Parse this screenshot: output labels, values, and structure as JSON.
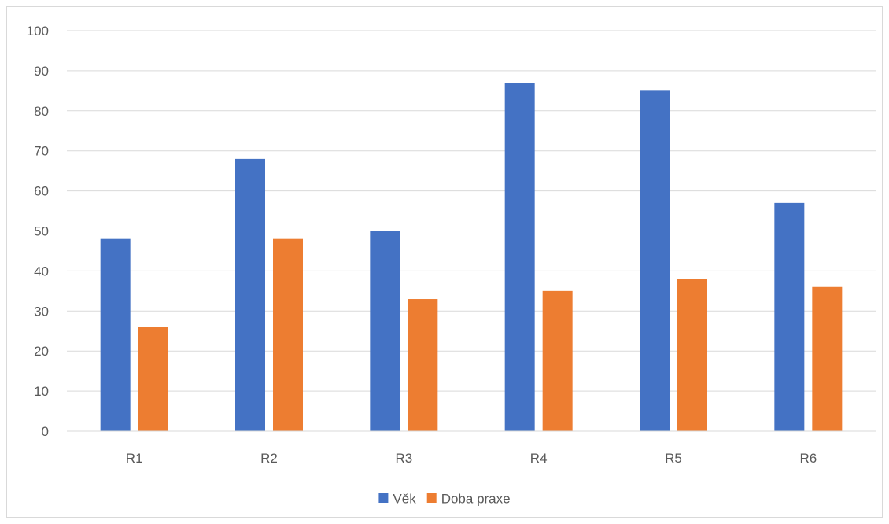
{
  "chart_data": {
    "type": "bar",
    "title": "",
    "xlabel": "",
    "ylabel": "",
    "categories": [
      "R1",
      "R2",
      "R3",
      "R4",
      "R5",
      "R6"
    ],
    "series": [
      {
        "name": "Věk",
        "color": "#4472C4",
        "values": [
          48,
          68,
          50,
          87,
          85,
          57
        ]
      },
      {
        "name": "Doba praxe",
        "color": "#ED7D31",
        "values": [
          26,
          48,
          33,
          35,
          38,
          36
        ]
      }
    ],
    "ylim": [
      0,
      100
    ],
    "yticks": [
      "0",
      "10",
      "20",
      "30",
      "40",
      "50",
      "60",
      "70",
      "80",
      "90",
      "100"
    ],
    "grid": true,
    "legend": "bottom"
  }
}
